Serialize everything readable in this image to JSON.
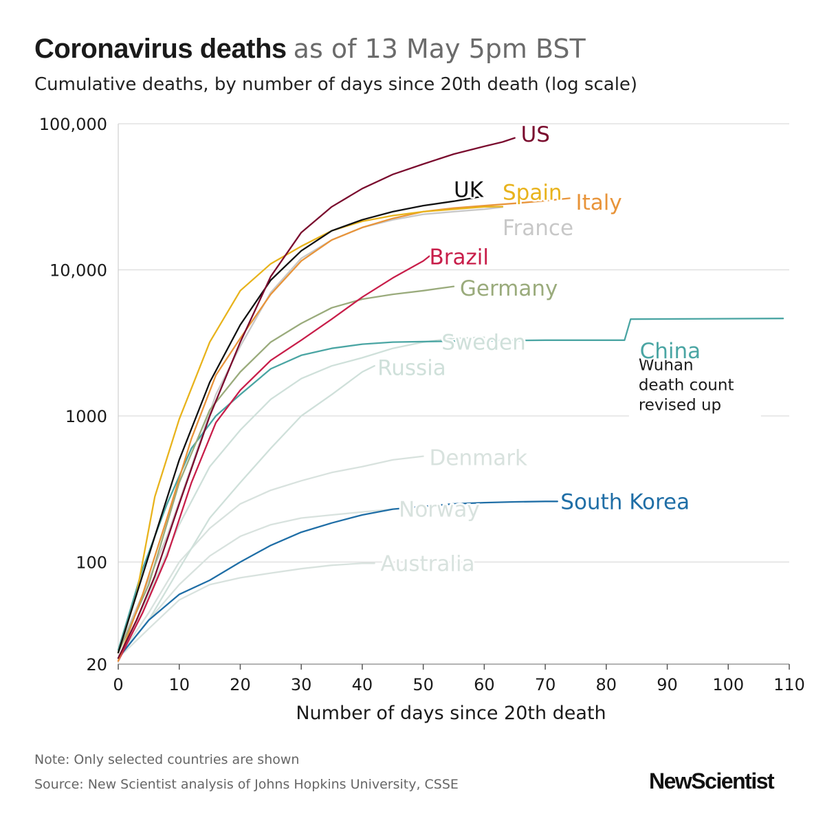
{
  "header": {
    "title_bold": "Coronavirus deaths",
    "title_light": "as of 13 May 5pm BST",
    "subtitle": "Cumulative deaths, by number of days since 20th death (log scale)"
  },
  "footer": {
    "note": "Note: Only selected countries are shown",
    "source": "Source: New Scientist analysis of Johns Hopkins University, CSSE",
    "logo": "NewScientist"
  },
  "chart_data": {
    "type": "line",
    "title": "Coronavirus deaths as of 13 May 5pm BST",
    "subtitle": "Cumulative deaths, by number of days since 20th death (log scale)",
    "xlabel": "Number of days since 20th death",
    "ylabel": "",
    "xlim": [
      0,
      110
    ],
    "ylim": [
      20,
      100000
    ],
    "yscale": "log",
    "x_ticks": [
      0,
      10,
      20,
      30,
      40,
      50,
      60,
      70,
      80,
      90,
      100,
      110
    ],
    "x_tick_labels": [
      "0",
      "10",
      "20",
      "30",
      "40",
      "50",
      "60",
      "70",
      "80",
      "90",
      "100",
      "110"
    ],
    "y_ticks": [
      20,
      100,
      1000,
      10000,
      100000
    ],
    "y_tick_labels": [
      "20",
      "100",
      "1000",
      "10,000",
      "100,000"
    ],
    "grid": "horizontal",
    "legend": "direct labels at line ends",
    "annotation": {
      "text": [
        "Wuhan",
        "death count",
        "revised up"
      ],
      "series": "China"
    },
    "series": [
      {
        "name": "US",
        "color": "#7a0b2e",
        "points": [
          [
            0,
            22
          ],
          [
            3,
            40
          ],
          [
            6,
            80
          ],
          [
            10,
            250
          ],
          [
            15,
            1000
          ],
          [
            20,
            3200
          ],
          [
            25,
            9000
          ],
          [
            30,
            18000
          ],
          [
            35,
            27000
          ],
          [
            40,
            36000
          ],
          [
            45,
            45000
          ],
          [
            50,
            53000
          ],
          [
            55,
            62000
          ],
          [
            60,
            70000
          ],
          [
            63,
            75000
          ],
          [
            65,
            80000
          ]
        ]
      },
      {
        "name": "UK",
        "color": "#111111",
        "points": [
          [
            0,
            24
          ],
          [
            3,
            60
          ],
          [
            6,
            150
          ],
          [
            10,
            500
          ],
          [
            15,
            1700
          ],
          [
            20,
            4200
          ],
          [
            25,
            8500
          ],
          [
            30,
            13500
          ],
          [
            35,
            18500
          ],
          [
            40,
            22000
          ],
          [
            45,
            25000
          ],
          [
            50,
            27500
          ],
          [
            55,
            29500
          ],
          [
            60,
            32000
          ]
        ]
      },
      {
        "name": "Spain",
        "color": "#e8b31c",
        "points": [
          [
            0,
            24
          ],
          [
            3,
            60
          ],
          [
            6,
            280
          ],
          [
            10,
            950
          ],
          [
            15,
            3200
          ],
          [
            20,
            7200
          ],
          [
            25,
            11000
          ],
          [
            30,
            14500
          ],
          [
            35,
            18500
          ],
          [
            40,
            21500
          ],
          [
            45,
            23500
          ],
          [
            50,
            25000
          ],
          [
            55,
            26000
          ],
          [
            60,
            27000
          ],
          [
            63,
            27100
          ]
        ]
      },
      {
        "name": "Italy",
        "color": "#e8943a",
        "points": [
          [
            0,
            21
          ],
          [
            4,
            60
          ],
          [
            8,
            200
          ],
          [
            12,
            700
          ],
          [
            16,
            1900
          ],
          [
            20,
            3400
          ],
          [
            25,
            6800
          ],
          [
            30,
            11500
          ],
          [
            35,
            16000
          ],
          [
            40,
            19500
          ],
          [
            45,
            22500
          ],
          [
            50,
            25000
          ],
          [
            55,
            26500
          ],
          [
            60,
            27500
          ],
          [
            65,
            28500
          ],
          [
            70,
            29700
          ],
          [
            74,
            30900
          ]
        ]
      },
      {
        "name": "France",
        "color": "#c8c8c8",
        "points": [
          [
            0,
            25
          ],
          [
            4,
            60
          ],
          [
            8,
            150
          ],
          [
            12,
            450
          ],
          [
            16,
            1400
          ],
          [
            20,
            3000
          ],
          [
            25,
            7000
          ],
          [
            30,
            12000
          ],
          [
            35,
            16000
          ],
          [
            40,
            19500
          ],
          [
            45,
            22000
          ],
          [
            50,
            24000
          ],
          [
            55,
            25000
          ],
          [
            60,
            26000
          ],
          [
            63,
            26900
          ]
        ]
      },
      {
        "name": "Brazil",
        "color": "#c81e4a",
        "points": [
          [
            0,
            21
          ],
          [
            4,
            45
          ],
          [
            8,
            110
          ],
          [
            12,
            350
          ],
          [
            16,
            900
          ],
          [
            20,
            1500
          ],
          [
            25,
            2400
          ],
          [
            30,
            3300
          ],
          [
            35,
            4600
          ],
          [
            40,
            6500
          ],
          [
            45,
            8800
          ],
          [
            50,
            11500
          ],
          [
            51,
            12400
          ]
        ]
      },
      {
        "name": "Germany",
        "color": "#9aab7c",
        "points": [
          [
            0,
            24
          ],
          [
            5,
            70
          ],
          [
            10,
            350
          ],
          [
            15,
            1100
          ],
          [
            20,
            2000
          ],
          [
            25,
            3200
          ],
          [
            30,
            4300
          ],
          [
            35,
            5500
          ],
          [
            40,
            6300
          ],
          [
            45,
            6800
          ],
          [
            50,
            7200
          ],
          [
            55,
            7700
          ]
        ]
      },
      {
        "name": "China",
        "color": "#4aa5a3",
        "points": [
          [
            0,
            25
          ],
          [
            4,
            90
          ],
          [
            8,
            250
          ],
          [
            12,
            600
          ],
          [
            16,
            1000
          ],
          [
            20,
            1400
          ],
          [
            25,
            2100
          ],
          [
            30,
            2600
          ],
          [
            35,
            2900
          ],
          [
            40,
            3100
          ],
          [
            45,
            3200
          ],
          [
            55,
            3250
          ],
          [
            70,
            3300
          ],
          [
            83,
            3300
          ],
          [
            84,
            4600
          ],
          [
            109,
            4650
          ]
        ]
      },
      {
        "name": "Sweden",
        "color": "#cfe0da",
        "points": [
          [
            0,
            21
          ],
          [
            5,
            60
          ],
          [
            10,
            180
          ],
          [
            15,
            450
          ],
          [
            20,
            800
          ],
          [
            25,
            1300
          ],
          [
            30,
            1800
          ],
          [
            35,
            2200
          ],
          [
            40,
            2500
          ],
          [
            45,
            2900
          ],
          [
            50,
            3200
          ],
          [
            55,
            3400
          ],
          [
            60,
            3450
          ]
        ]
      },
      {
        "name": "Russia",
        "color": "#cfe0da",
        "points": [
          [
            0,
            22
          ],
          [
            5,
            40
          ],
          [
            10,
            90
          ],
          [
            15,
            200
          ],
          [
            20,
            350
          ],
          [
            25,
            600
          ],
          [
            30,
            1000
          ],
          [
            35,
            1400
          ],
          [
            40,
            2000
          ],
          [
            42,
            2200
          ]
        ]
      },
      {
        "name": "Denmark",
        "color": "#d8e2de",
        "points": [
          [
            0,
            22
          ],
          [
            5,
            45
          ],
          [
            10,
            100
          ],
          [
            15,
            170
          ],
          [
            20,
            250
          ],
          [
            25,
            310
          ],
          [
            30,
            360
          ],
          [
            35,
            410
          ],
          [
            40,
            450
          ],
          [
            45,
            500
          ],
          [
            50,
            530
          ]
        ]
      },
      {
        "name": "Norway",
        "color": "#d8e2de",
        "points": [
          [
            0,
            22
          ],
          [
            5,
            40
          ],
          [
            10,
            70
          ],
          [
            15,
            110
          ],
          [
            20,
            150
          ],
          [
            25,
            180
          ],
          [
            30,
            200
          ],
          [
            35,
            210
          ],
          [
            40,
            220
          ],
          [
            45,
            230
          ]
        ]
      },
      {
        "name": "South Korea",
        "color": "#1f6ea6",
        "points": [
          [
            0,
            22
          ],
          [
            5,
            40
          ],
          [
            10,
            60
          ],
          [
            15,
            75
          ],
          [
            20,
            100
          ],
          [
            25,
            130
          ],
          [
            30,
            160
          ],
          [
            35,
            185
          ],
          [
            40,
            210
          ],
          [
            45,
            230
          ],
          [
            50,
            240
          ],
          [
            55,
            250
          ],
          [
            60,
            255
          ],
          [
            65,
            258
          ],
          [
            70,
            260
          ],
          [
            72,
            260
          ]
        ]
      },
      {
        "name": "Australia",
        "color": "#d8e2de",
        "points": [
          [
            0,
            22
          ],
          [
            5,
            35
          ],
          [
            10,
            55
          ],
          [
            15,
            70
          ],
          [
            20,
            78
          ],
          [
            25,
            84
          ],
          [
            30,
            90
          ],
          [
            35,
            95
          ],
          [
            40,
            98
          ],
          [
            42,
            98
          ]
        ]
      }
    ],
    "labels": [
      {
        "series": "US",
        "x": 66,
        "y": 85000,
        "size": 31
      },
      {
        "series": "UK",
        "x": 55,
        "y": 35500,
        "size": 31
      },
      {
        "series": "Spain",
        "x": 63,
        "y": 34000,
        "size": 31
      },
      {
        "series": "Italy",
        "x": 75,
        "y": 29000,
        "size": 31
      },
      {
        "series": "France",
        "x": 63,
        "y": 19500,
        "size": 31
      },
      {
        "series": "Brazil",
        "x": 51,
        "y": 12300,
        "size": 31
      },
      {
        "series": "Germany",
        "x": 56,
        "y": 7500,
        "size": 31
      },
      {
        "series": "Sweden",
        "x": 53,
        "y": 3200,
        "size": 31
      },
      {
        "series": "Russia",
        "x": 42.5,
        "y": 2150,
        "size": 31
      },
      {
        "series": "China",
        "x": 85.5,
        "y": 2800,
        "size": 31
      },
      {
        "series": "Denmark",
        "x": 51,
        "y": 520,
        "size": 31
      },
      {
        "series": "Norway",
        "x": 46,
        "y": 230,
        "size": 31
      },
      {
        "series": "South Korea",
        "x": 72.5,
        "y": 260,
        "size": 31
      },
      {
        "series": "Australia",
        "x": 43,
        "y": 98,
        "size": 31
      }
    ]
  }
}
